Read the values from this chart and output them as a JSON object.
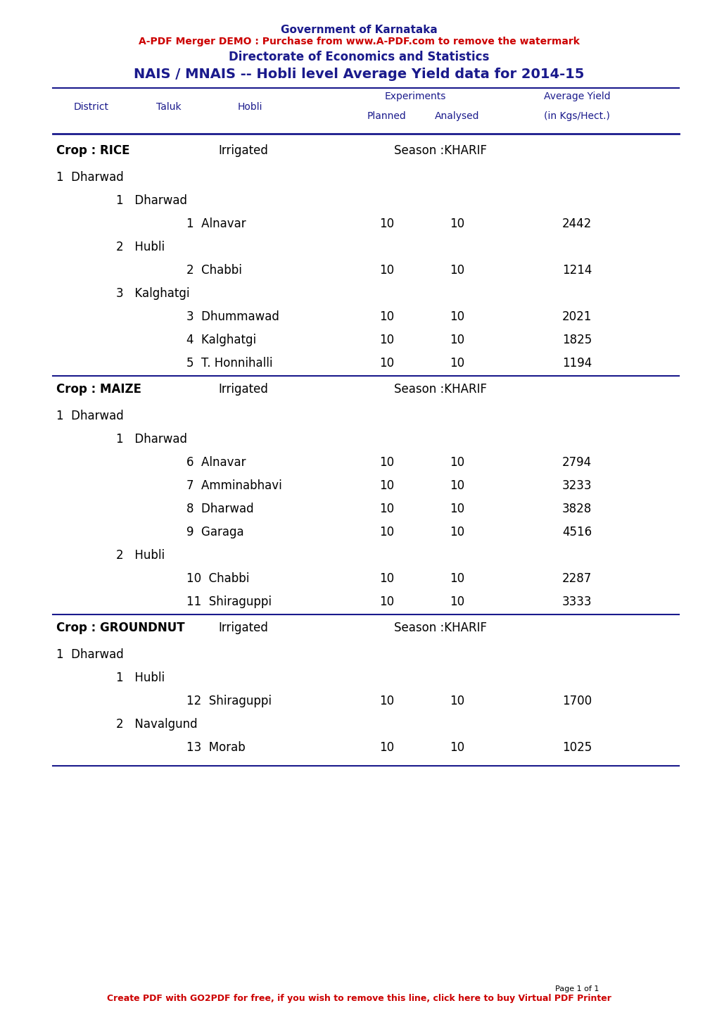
{
  "page_title1": "Government of Karnataka",
  "page_title2": "Directorate of Economics and Statistics",
  "main_title": "NAIS / MNAIS -- Hobli level Average Yield data for 2014-15",
  "watermark_text": "A-PDF Merger DEMO : Purchase from www.A-PDF.com to remove the watermark",
  "footer_text": "Create PDF with GO2PDF for free, if you wish to remove this line, click here to buy Virtual PDF Printer",
  "page_label": "Page 1 of 1",
  "header_color": "#1a1a8c",
  "data_color": "#000000",
  "watermark_color": "#cc0000",
  "footer_color": "#cc0000",
  "rows": [
    {
      "type": "crop_header",
      "crop": "Crop : RICE",
      "mode": "Irrigated",
      "season": "Season :KHARIF"
    },
    {
      "type": "district",
      "num": "1",
      "name": "Dharwad"
    },
    {
      "type": "taluk",
      "num": "1",
      "name": "Dharwad"
    },
    {
      "type": "hobli",
      "num": "1",
      "name": "Alnavar",
      "planned": "10",
      "analysed": "10",
      "yield": "2442"
    },
    {
      "type": "taluk",
      "num": "2",
      "name": "Hubli"
    },
    {
      "type": "hobli",
      "num": "2",
      "name": "Chabbi",
      "planned": "10",
      "analysed": "10",
      "yield": "1214"
    },
    {
      "type": "taluk",
      "num": "3",
      "name": "Kalghatgi"
    },
    {
      "type": "hobli",
      "num": "3",
      "name": "Dhummawad",
      "planned": "10",
      "analysed": "10",
      "yield": "2021"
    },
    {
      "type": "hobli",
      "num": "4",
      "name": "Kalghatgi",
      "planned": "10",
      "analysed": "10",
      "yield": "1825"
    },
    {
      "type": "hobli",
      "num": "5",
      "name": "T. Honnihalli",
      "planned": "10",
      "analysed": "10",
      "yield": "1194"
    },
    {
      "type": "crop_header",
      "crop": "Crop : MAIZE",
      "mode": "Irrigated",
      "season": "Season :KHARIF"
    },
    {
      "type": "district",
      "num": "1",
      "name": "Dharwad"
    },
    {
      "type": "taluk",
      "num": "1",
      "name": "Dharwad"
    },
    {
      "type": "hobli",
      "num": "6",
      "name": "Alnavar",
      "planned": "10",
      "analysed": "10",
      "yield": "2794"
    },
    {
      "type": "hobli",
      "num": "7",
      "name": "Amminabhavi",
      "planned": "10",
      "analysed": "10",
      "yield": "3233"
    },
    {
      "type": "hobli",
      "num": "8",
      "name": "Dharwad",
      "planned": "10",
      "analysed": "10",
      "yield": "3828"
    },
    {
      "type": "hobli",
      "num": "9",
      "name": "Garaga",
      "planned": "10",
      "analysed": "10",
      "yield": "4516"
    },
    {
      "type": "taluk",
      "num": "2",
      "name": "Hubli"
    },
    {
      "type": "hobli",
      "num": "10",
      "name": "Chabbi",
      "planned": "10",
      "analysed": "10",
      "yield": "2287"
    },
    {
      "type": "hobli",
      "num": "11",
      "name": "Shiraguppi",
      "planned": "10",
      "analysed": "10",
      "yield": "3333"
    },
    {
      "type": "crop_header",
      "crop": "Crop : GROUNDNUT",
      "mode": "Irrigated",
      "season": "Season :KHARIF"
    },
    {
      "type": "district",
      "num": "1",
      "name": "Dharwad"
    },
    {
      "type": "taluk",
      "num": "1",
      "name": "Hubli"
    },
    {
      "type": "hobli",
      "num": "12",
      "name": "Shiraguppi",
      "planned": "10",
      "analysed": "10",
      "yield": "1700"
    },
    {
      "type": "taluk",
      "num": "2",
      "name": "Navalgund"
    },
    {
      "type": "hobli",
      "num": "13",
      "name": "Morab",
      "planned": "10",
      "analysed": "10",
      "yield": "1025"
    }
  ],
  "figsize": [
    10.2,
    14.42
  ],
  "dpi": 100
}
